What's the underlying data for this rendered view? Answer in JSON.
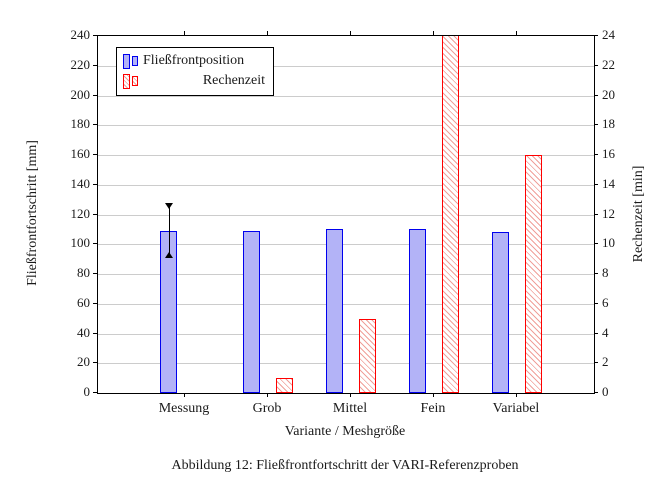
{
  "figure": {
    "caption": "Abbildung 12: Fließfrontfortschritt der VARI-Referenzproben"
  },
  "chart_data": {
    "type": "bar",
    "categories": [
      "Messung",
      "Grob",
      "Mittel",
      "Fein",
      "Variabel"
    ],
    "series": [
      {
        "name": "Fließfrontposition",
        "axis": "left",
        "unit": "mm",
        "values": [
          109,
          109,
          110,
          110,
          108
        ],
        "fill": "#b3b3f7",
        "border": "#0000ee",
        "hatch": false
      },
      {
        "name": "Rechenzeit",
        "axis": "right",
        "unit": "min",
        "values": [
          null,
          1,
          5,
          24,
          16
        ],
        "clipped": [
          false,
          false,
          false,
          true,
          false
        ],
        "note": "Fein Rechenzeit bar exceeds the axis maximum and is clipped at 24 min",
        "fill": "#ffffff",
        "border": "#ff0000",
        "hatch": true
      }
    ],
    "error_bars": [
      {
        "series": "Fließfrontposition",
        "category": "Messung",
        "low": 91,
        "high": 128
      }
    ],
    "xlabel": "Variante / Meshgröße",
    "ylabel_left": "Fließfrontfortschritt [mm]",
    "ylabel_right": "Rechenzeit [min]",
    "ylim_left": [
      0,
      240
    ],
    "ytick_step_left": 20,
    "ylim_right": [
      0,
      24
    ],
    "ytick_step_right": 2,
    "grid": "horizontal",
    "gridline_color": "#cccccc",
    "legend_position": "top-left"
  }
}
